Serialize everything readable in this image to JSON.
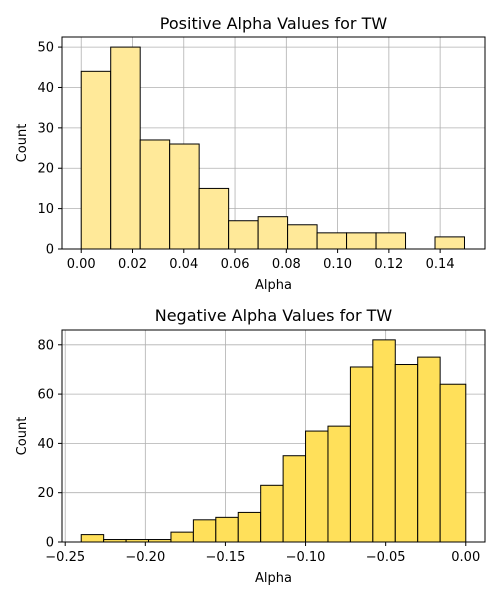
{
  "chart_data": [
    {
      "type": "bar",
      "title": "Positive Alpha Values for TW",
      "xlabel": "Alpha",
      "ylabel": "Count",
      "xlim": [
        -0.0075,
        0.1575
      ],
      "ylim": [
        0,
        52.5
      ],
      "xticks": [
        0.0,
        0.02,
        0.04,
        0.06,
        0.08,
        0.1,
        0.12,
        0.14
      ],
      "xtick_labels": [
        "0.00",
        "0.02",
        "0.04",
        "0.06",
        "0.08",
        "0.10",
        "0.12",
        "0.14"
      ],
      "yticks": [
        0,
        10,
        20,
        30,
        40,
        50
      ],
      "ytick_labels": [
        "0",
        "10",
        "20",
        "30",
        "40",
        "50"
      ],
      "grid": true,
      "bar_color": "#ffe999",
      "bin_edges": [
        0.0,
        0.0115,
        0.023,
        0.0345,
        0.046,
        0.0575,
        0.069,
        0.0805,
        0.092,
        0.1035,
        0.115,
        0.1265,
        0.138,
        0.1495
      ],
      "values": [
        44,
        50,
        27,
        26,
        15,
        7,
        8,
        6,
        4,
        4,
        4,
        0,
        3
      ]
    },
    {
      "type": "bar",
      "title": "Negative Alpha Values for TW",
      "xlabel": "Alpha",
      "ylabel": "Count",
      "xlim": [
        -0.252,
        0.012
      ],
      "ylim": [
        0,
        86
      ],
      "xticks": [
        -0.25,
        -0.2,
        -0.15,
        -0.1,
        -0.05,
        0.0
      ],
      "xtick_labels": [
        "−0.25",
        "−0.20",
        "−0.15",
        "−0.10",
        "−0.05",
        "0.00"
      ],
      "yticks": [
        0,
        20,
        40,
        60,
        80
      ],
      "ytick_labels": [
        "0",
        "20",
        "40",
        "60",
        "80"
      ],
      "grid": true,
      "bar_color": "#ffe05a",
      "bin_edges": [
        -0.24,
        -0.226,
        -0.212,
        -0.198,
        -0.184,
        -0.17,
        -0.156,
        -0.142,
        -0.128,
        -0.114,
        -0.1,
        -0.086,
        -0.072,
        -0.058,
        -0.044,
        -0.03,
        -0.016,
        0.0
      ],
      "values": [
        3,
        1,
        1,
        1,
        4,
        9,
        10,
        12,
        23,
        35,
        45,
        47,
        71,
        82,
        72,
        75,
        64
      ]
    }
  ]
}
